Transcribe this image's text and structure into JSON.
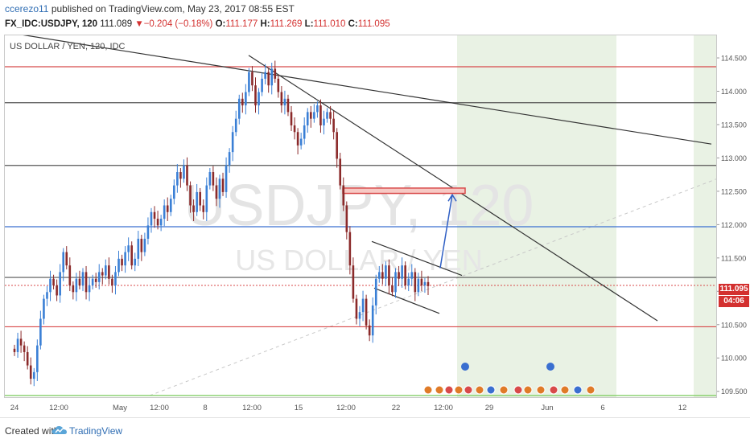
{
  "header": {
    "author": "ccerezo11",
    "published_text": "published on TradingView.com, May 23, 2017 08:55 EST",
    "symbol": "FX_IDC:USDJPY, 120",
    "last": "111.089",
    "change_arrow": "▼",
    "change": "−0.204 (−0.18%)",
    "open_label": "O:",
    "open": "111.177",
    "high_label": "H:",
    "high": "111.269",
    "low_label": "L:",
    "low": "111.010",
    "close_label": "C:",
    "close": "111.095"
  },
  "legend": "US DOLLAR / YEN, 120, IDC",
  "watermark": {
    "symbol": "USDJPY, 120",
    "description": "US DOLLAR / YEN"
  },
  "price_badge": {
    "price": "111.095",
    "countdown": "04:06",
    "color": "#d3302f"
  },
  "footer": {
    "created_with": "Created with",
    "brand": "TradingView"
  },
  "colors": {
    "up": "#3a7fd5",
    "down": "#8b2a2a",
    "red_line": "#d84a4a",
    "blue_line": "#3a6fd0",
    "green_zone": "#e9f2e4",
    "green_line": "#7acb5c",
    "dark_line": "#333333"
  },
  "chart_data": {
    "type": "candlestick",
    "ylim": [
      109.4,
      114.85
    ],
    "y_ticks": [
      "114.500",
      "114.000",
      "113.500",
      "113.000",
      "112.500",
      "112.000",
      "111.500",
      "111.000",
      "110.500",
      "110.000",
      "109.500"
    ],
    "x_ticks": [
      "24",
      "12:00",
      "May",
      "12:00",
      "8",
      "12:00",
      "15",
      "12:00",
      "22",
      "12:00",
      "29",
      "Jun",
      "6",
      "12"
    ],
    "horizontal_levels": [
      {
        "price": 114.38,
        "color": "#d84a4a"
      },
      {
        "price": 113.84,
        "color": "#555555"
      },
      {
        "price": 112.9,
        "color": "#555555"
      },
      {
        "price": 111.98,
        "color": "#3a6fd0"
      },
      {
        "price": 111.22,
        "color": "#555555"
      },
      {
        "price": 111.1,
        "color": "#d84a4a",
        "dashed": true
      },
      {
        "price": 110.48,
        "color": "#d84a4a"
      },
      {
        "price": 109.45,
        "color": "#7acb5c"
      }
    ],
    "trendlines": [
      {
        "from": [
          0,
          114.9
        ],
        "to": [
          878,
          113.22
        ]
      },
      {
        "from": [
          303,
          114.55
        ],
        "to": [
          811,
          110.57
        ]
      },
      {
        "from": [
          456,
          111.76
        ],
        "to": [
          568,
          111.25
        ]
      },
      {
        "from": [
          459,
          111.06
        ],
        "to": [
          540,
          110.68
        ]
      }
    ],
    "target_zone": {
      "x_from": 420,
      "x_to": 572,
      "price_top": 112.56,
      "price_bottom": 112.48
    },
    "projection_arrow": {
      "from": [
        541,
        111.36
      ],
      "to": [
        556,
        112.46
      ]
    },
    "closes": [
      110.1,
      110.3,
      110.2,
      110.1,
      109.9,
      109.7,
      109.8,
      110.2,
      110.6,
      110.9,
      111.0,
      111.2,
      111.1,
      110.95,
      111.3,
      111.6,
      111.4,
      111.1,
      111.0,
      111.2,
      111.1,
      111.3,
      111.0,
      111.1,
      111.2,
      111.15,
      111.3,
      111.25,
      111.4,
      111.2,
      111.1,
      111.3,
      111.5,
      111.4,
      111.6,
      111.7,
      111.4,
      111.5,
      111.8,
      111.6,
      111.8,
      112.0,
      112.2,
      112.1,
      112.0,
      112.1,
      112.3,
      112.2,
      112.4,
      112.6,
      112.8,
      112.7,
      112.9,
      112.6,
      112.3,
      112.2,
      112.5,
      112.3,
      112.2,
      112.6,
      112.8,
      112.6,
      112.4,
      112.7,
      112.5,
      112.9,
      113.1,
      113.4,
      113.6,
      113.9,
      113.8,
      114.0,
      114.3,
      114.1,
      113.8,
      114.0,
      114.2,
      114.3,
      114.1,
      114.35,
      114.2,
      114.0,
      113.8,
      113.9,
      113.7,
      113.5,
      113.4,
      113.2,
      113.3,
      113.5,
      113.7,
      113.6,
      113.7,
      113.8,
      113.5,
      113.6,
      113.7,
      113.6,
      113.4,
      113.0,
      112.6,
      112.3,
      111.9,
      111.4,
      110.9,
      110.6,
      110.7,
      110.9,
      110.5,
      110.35,
      110.8,
      111.2,
      111.3,
      111.2,
      111.4,
      111.1,
      111.0,
      111.3,
      111.2,
      111.4,
      111.1,
      111.2,
      111.3,
      111.0,
      111.2,
      111.1,
      111.15,
      111.09
    ]
  }
}
